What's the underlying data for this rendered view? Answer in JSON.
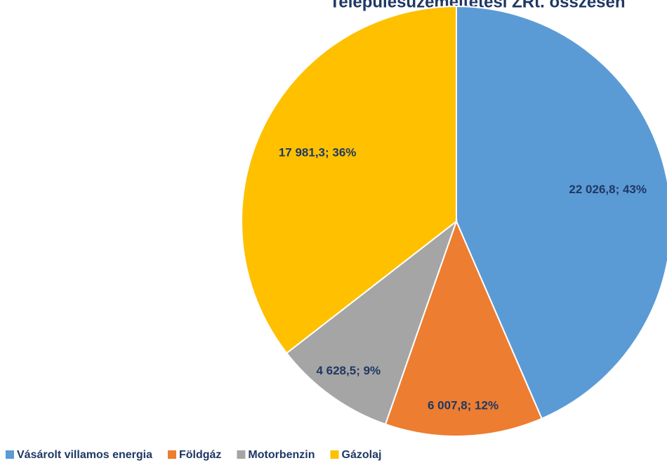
{
  "chart_data": {
    "type": "pie",
    "title": "Településüzemeltetési ZRt. összesen",
    "categories": [
      "Vásárolt villamos energia",
      "Földgáz",
      "Motorbenzin",
      "Gázolaj"
    ],
    "values": [
      22026.8,
      6007.8,
      4628.5,
      17981.3
    ],
    "value_labels": [
      "22 026,8; 43%",
      "6 007,8; 12%",
      "4 628,5; 9%",
      "17 981,3; 36%"
    ],
    "colors": [
      "#5b9bd5",
      "#ed7d31",
      "#a5a5a5",
      "#ffc000"
    ],
    "legend": "bottom"
  }
}
